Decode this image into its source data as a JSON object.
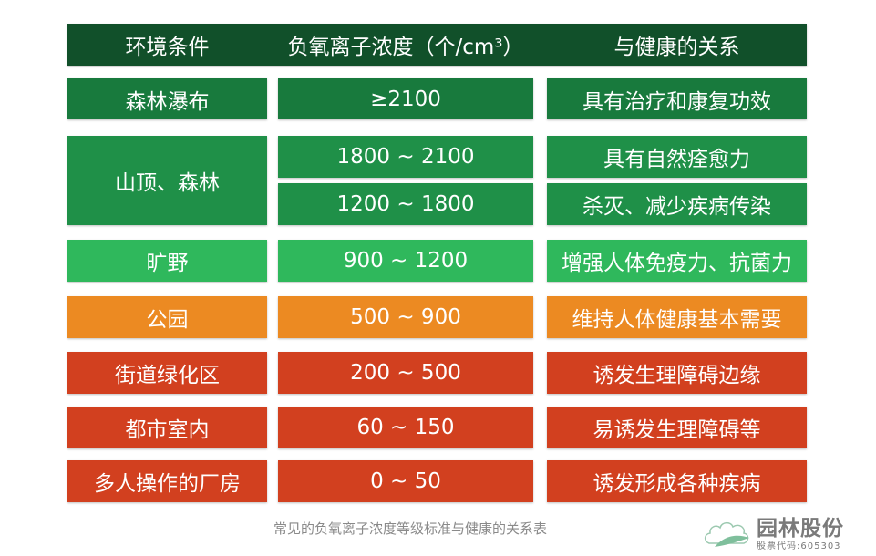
{
  "header": {
    "col1": "环境条件",
    "col2": "负氧离子浓度（个/cm³）",
    "col3": "与健康的关系"
  },
  "colors": {
    "header": "#11502a",
    "dark_green": "#187a3d",
    "green": "#1f9048",
    "light_green": "#2fb85c",
    "orange": "#ec8a22",
    "red": "#d2401f"
  },
  "rows": [
    {
      "environment": "森林瀑布",
      "concentration": "≥2100",
      "health": "具有治疗和康复功效"
    },
    {
      "environment": "山顶、森林",
      "concentration": "1800 ~ 2100",
      "health": "具有自然痊愈力"
    },
    {
      "concentration": "1200 ~ 1800",
      "health": "杀灭、减少疾病传染"
    },
    {
      "environment": "旷野",
      "concentration": "900 ~ 1200",
      "health": "增强人体免疫力、抗菌力"
    },
    {
      "environment": "公园",
      "concentration": "500 ~ 900",
      "health": "维持人体健康基本需要"
    },
    {
      "environment": "街道绿化区",
      "concentration": "200 ~ 500",
      "health": "诱发生理障碍边缘"
    },
    {
      "environment": "都市室内",
      "concentration": "60 ~ 150",
      "health": "易诱发生理障碍等"
    },
    {
      "environment": "多人操作的厂房",
      "concentration": "0 ~ 50",
      "health": "诱发形成各种疾病"
    }
  ],
  "caption": "常见的负氧离子浓度等级标准与健康的关系表",
  "logo": {
    "name": "园林股份",
    "stock": "股票代码:605303"
  }
}
